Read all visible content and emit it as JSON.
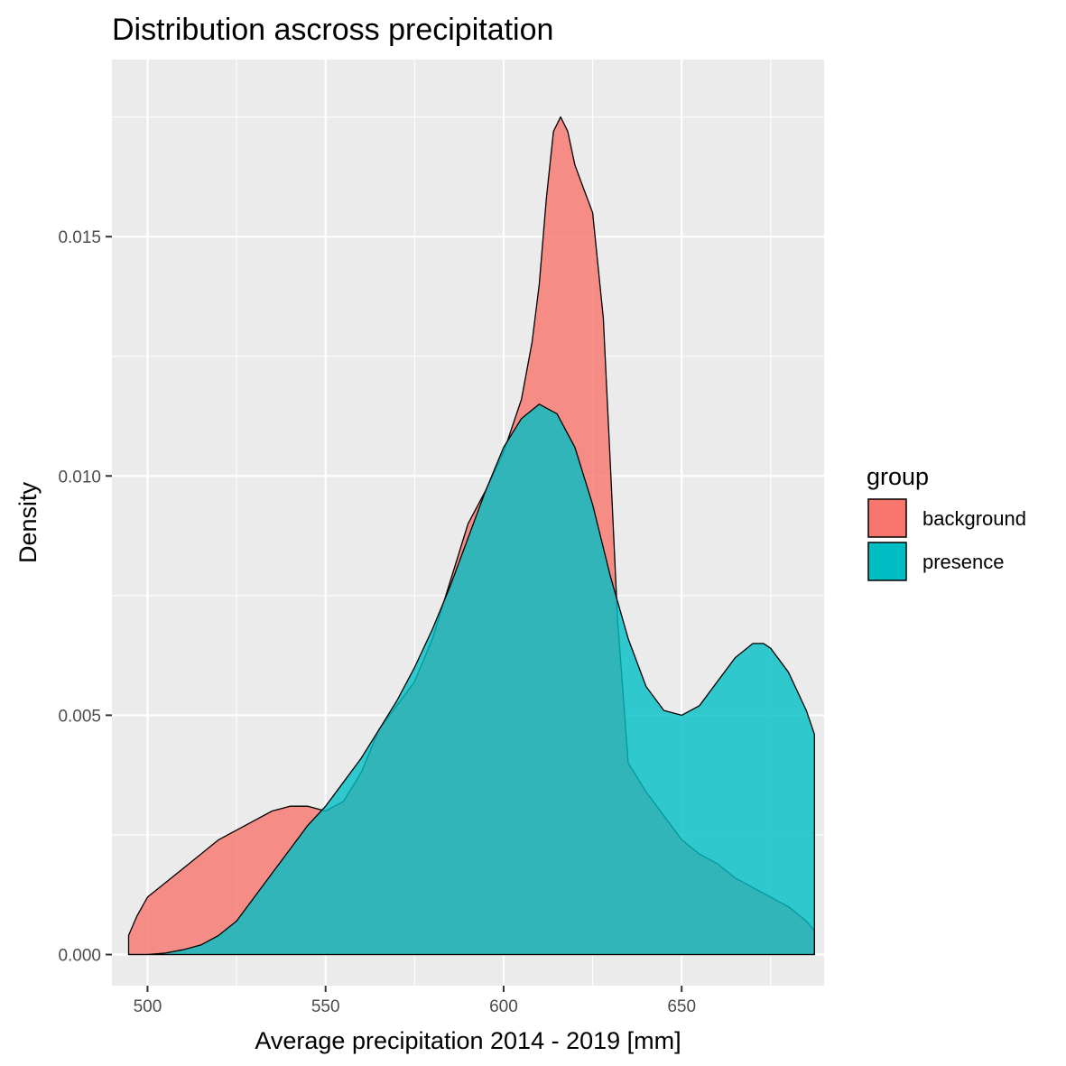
{
  "chart_data": {
    "type": "area",
    "title": "Distribution ascross precipitation",
    "xlabel": "Average precipitation 2014 - 2019 [mm]",
    "ylabel": "Density",
    "xlim": [
      490,
      690
    ],
    "ylim": [
      -0.00065,
      0.0187
    ],
    "x_ticks": [
      500,
      550,
      600,
      650
    ],
    "x_tick_labels": [
      "500",
      "550",
      "600",
      "650"
    ],
    "y_ticks": [
      0.0,
      0.005,
      0.01,
      0.015
    ],
    "y_tick_labels": [
      "0.000",
      "0.005",
      "0.010",
      "0.015"
    ],
    "grid": true,
    "legend": {
      "title": "group",
      "position": "right",
      "entries": [
        {
          "label": "background",
          "color": "#F8766D"
        },
        {
          "label": "presence",
          "color": "#00BFC4"
        }
      ]
    },
    "series": [
      {
        "name": "background",
        "color": "#F8766D",
        "x": [
          494.7,
          497,
          500,
          505,
          510,
          515,
          520,
          525,
          530,
          535,
          540,
          545,
          550,
          555,
          560,
          565,
          570,
          575,
          580,
          585,
          590,
          595,
          600,
          605,
          608,
          610,
          612,
          614,
          616,
          618,
          620,
          622,
          625,
          628,
          630,
          632,
          635,
          640,
          645,
          650,
          655,
          660,
          665,
          670,
          675,
          680,
          685,
          687.3
        ],
        "values": [
          0.0004,
          0.0008,
          0.0012,
          0.0015,
          0.0018,
          0.0021,
          0.0024,
          0.0026,
          0.0028,
          0.003,
          0.0031,
          0.0031,
          0.003,
          0.0032,
          0.0038,
          0.0047,
          0.0052,
          0.0057,
          0.0066,
          0.0078,
          0.009,
          0.0097,
          0.0105,
          0.0116,
          0.0128,
          0.014,
          0.0158,
          0.0172,
          0.0175,
          0.0172,
          0.0165,
          0.0161,
          0.0155,
          0.0133,
          0.0102,
          0.007,
          0.004,
          0.0034,
          0.0029,
          0.0024,
          0.0021,
          0.0019,
          0.0016,
          0.0014,
          0.0012,
          0.001,
          0.0007,
          0.0005
        ]
      },
      {
        "name": "presence",
        "color": "#00BFC4",
        "x": [
          494.7,
          500,
          505,
          510,
          515,
          520,
          525,
          530,
          535,
          540,
          545,
          550,
          555,
          560,
          565,
          570,
          575,
          580,
          585,
          590,
          595,
          600,
          605,
          610,
          615,
          620,
          625,
          630,
          635,
          640,
          645,
          650,
          655,
          660,
          665,
          670,
          673,
          675,
          680,
          685,
          687.3
        ],
        "values": [
          0.0,
          0.0,
          3e-05,
          0.0001,
          0.0002,
          0.0004,
          0.0007,
          0.0012,
          0.0017,
          0.0022,
          0.0027,
          0.0031,
          0.0036,
          0.0041,
          0.0047,
          0.0053,
          0.006,
          0.0068,
          0.0077,
          0.0087,
          0.0097,
          0.0106,
          0.0112,
          0.0115,
          0.0113,
          0.0106,
          0.0094,
          0.0079,
          0.0066,
          0.0056,
          0.0051,
          0.005,
          0.0052,
          0.0057,
          0.0062,
          0.0065,
          0.0065,
          0.0064,
          0.0059,
          0.0051,
          0.0046
        ]
      }
    ]
  }
}
